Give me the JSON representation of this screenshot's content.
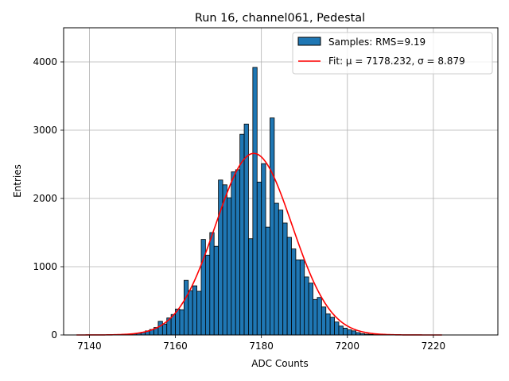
{
  "chart_data": {
    "type": "bar",
    "title": "Run 16, channel061, Pedestal",
    "xlabel": "ADC Counts",
    "ylabel": "Entries",
    "xlim": [
      7134,
      7235
    ],
    "ylim": [
      0,
      4500
    ],
    "xticks": [
      7140,
      7160,
      7180,
      7200,
      7220
    ],
    "yticks": [
      0,
      1000,
      2000,
      3000,
      4000
    ],
    "grid": true,
    "legend_position": "top-right",
    "bin_width": 1,
    "colors": {
      "bars": "#1f77b4",
      "bar_edge": "#000000",
      "fit": "#ff0000",
      "grid": "#b0b0b0"
    },
    "legend": [
      {
        "label": "Samples: RMS=9.19"
      },
      {
        "label": "Fit: μ = 7178.232, σ = 8.879"
      }
    ],
    "histogram": {
      "bin_edges_start": 7148,
      "counts": [
        5,
        10,
        15,
        25,
        40,
        60,
        80,
        110,
        200,
        160,
        250,
        300,
        380,
        370,
        800,
        650,
        720,
        640,
        1400,
        1170,
        1500,
        1300,
        2270,
        2200,
        2010,
        2390,
        2420,
        2940,
        3090,
        1410,
        3920,
        2240,
        2510,
        1580,
        3180,
        1930,
        1830,
        1640,
        1430,
        1260,
        1100,
        1100,
        850,
        760,
        520,
        550,
        410,
        310,
        260,
        190,
        130,
        100,
        75,
        60,
        35,
        20,
        12,
        8,
        5,
        3
      ]
    },
    "fit": {
      "mu": 7178.232,
      "sigma": 8.879,
      "amplitude": 2660,
      "x_range": [
        7137,
        7222
      ]
    }
  }
}
